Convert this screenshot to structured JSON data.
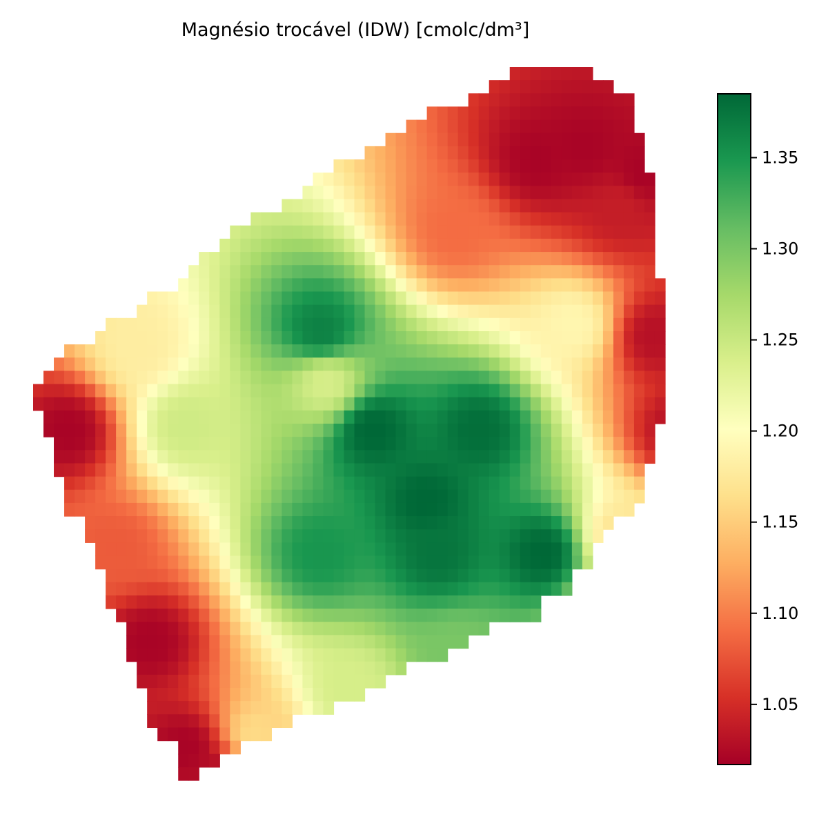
{
  "chart_data": {
    "type": "heatmap",
    "title": "Magnésio trocável (IDW) [cmolc/dm³]",
    "xlabel": "",
    "ylabel": "",
    "axes_visible": false,
    "colormap": "RdYlGn",
    "colormap_stops": [
      "#a50026",
      "#d73027",
      "#f46d43",
      "#fdae61",
      "#fee08b",
      "#ffffbf",
      "#d9ef8b",
      "#a6d96a",
      "#66bd63",
      "#1a9850",
      "#006837"
    ],
    "value_range": [
      1.017,
      1.385
    ],
    "colorbar": {
      "position": "right",
      "ticks": [
        1.05,
        1.1,
        1.15,
        1.2,
        1.25,
        1.3,
        1.35
      ],
      "tick_labels": [
        "1.05",
        "1.10",
        "1.15",
        "1.20",
        "1.25",
        "1.30",
        "1.35"
      ]
    },
    "grid_shape": [
      61,
      54
    ],
    "field_description": "IDW-interpolated exchangeable magnesium over an irregular tilted field polygon",
    "value_hotspots": [
      {
        "x": 29,
        "y": 32,
        "value": 1.385
      },
      {
        "x": 38,
        "y": 32,
        "value": 1.38
      },
      {
        "x": 33.5,
        "y": 38,
        "value": 1.385
      },
      {
        "x": 24.5,
        "y": 42.5,
        "value": 1.35
      },
      {
        "x": 34.5,
        "y": 42.5,
        "value": 1.375
      },
      {
        "x": 43.5,
        "y": 42.5,
        "value": 1.385
      },
      {
        "x": 24.5,
        "y": 23.5,
        "value": 1.365
      },
      {
        "x": 13,
        "y": 31.5,
        "value": 1.245
      },
      {
        "x": 36,
        "y": 51,
        "value": 1.3
      },
      {
        "x": 27,
        "y": 54,
        "value": 1.24
      },
      {
        "x": 47,
        "y": 8,
        "value": 1.02
      },
      {
        "x": 43,
        "y": 9,
        "value": 1.02
      },
      {
        "x": 52,
        "y": 10,
        "value": 1.02
      },
      {
        "x": 50,
        "y": 13,
        "value": 1.04
      },
      {
        "x": 53,
        "y": 24,
        "value": 1.03
      },
      {
        "x": 55,
        "y": 32,
        "value": 1.03
      },
      {
        "x": 3,
        "y": 32,
        "value": 1.02
      },
      {
        "x": 10,
        "y": 50,
        "value": 1.02
      },
      {
        "x": 13,
        "y": 59,
        "value": 1.02
      },
      {
        "x": 16,
        "y": 62,
        "value": 1.02
      },
      {
        "x": 36,
        "y": 15,
        "value": 1.09
      },
      {
        "x": 7,
        "y": 42,
        "value": 1.08
      },
      {
        "x": 50,
        "y": 41,
        "value": 1.17
      },
      {
        "x": 9,
        "y": 25,
        "value": 1.18
      },
      {
        "x": 46,
        "y": 23,
        "value": 1.19
      },
      {
        "x": 25,
        "y": 28,
        "value": 1.24
      },
      {
        "x": 19,
        "y": 58,
        "value": 1.16
      },
      {
        "x": 50,
        "y": 47,
        "value": 1.22
      }
    ]
  }
}
